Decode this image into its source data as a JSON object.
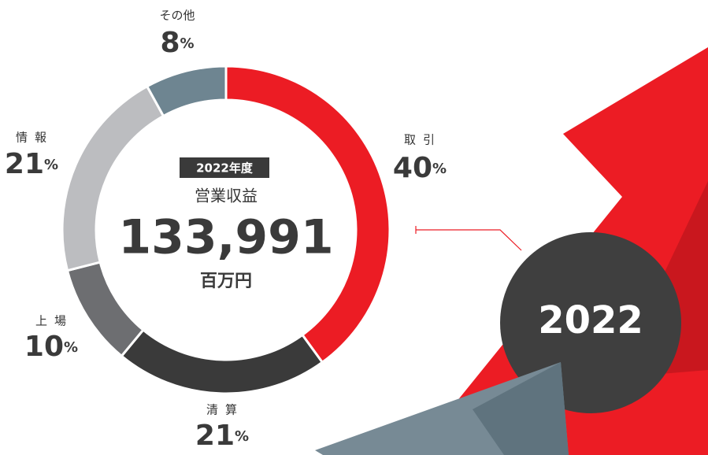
{
  "chart_data": {
    "type": "donut",
    "categories": [
      "取引",
      "清算",
      "上場",
      "情報",
      "その他"
    ],
    "values": [
      40,
      21,
      10,
      21,
      8
    ],
    "unit": "%",
    "colors": [
      "#ec1c24",
      "#3a3a3a",
      "#6d6e71",
      "#bcbdc0",
      "#6e8591"
    ],
    "center": {
      "badge": "2022年度",
      "label": "営業収益",
      "value": "133,991",
      "unit": "百万円"
    }
  },
  "decoration": {
    "year": "2022"
  }
}
